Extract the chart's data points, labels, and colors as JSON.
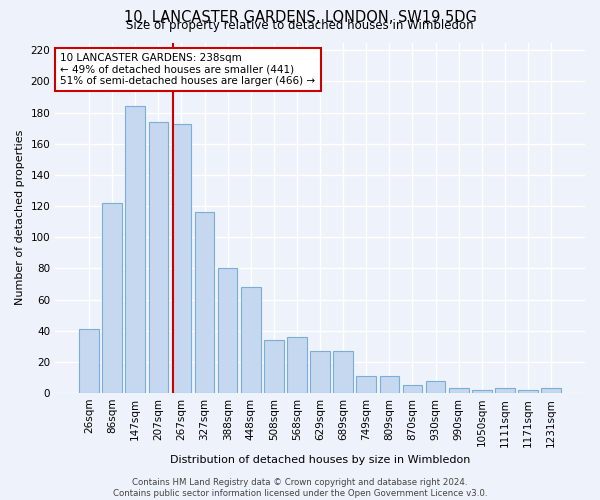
{
  "title": "10, LANCASTER GARDENS, LONDON, SW19 5DG",
  "subtitle": "Size of property relative to detached houses in Wimbledon",
  "xlabel": "Distribution of detached houses by size in Wimbledon",
  "ylabel": "Number of detached properties",
  "categories": [
    "26sqm",
    "86sqm",
    "147sqm",
    "207sqm",
    "267sqm",
    "327sqm",
    "388sqm",
    "448sqm",
    "508sqm",
    "568sqm",
    "629sqm",
    "689sqm",
    "749sqm",
    "809sqm",
    "870sqm",
    "930sqm",
    "990sqm",
    "1050sqm",
    "1111sqm",
    "1171sqm",
    "1231sqm"
  ],
  "values": [
    41,
    122,
    184,
    174,
    173,
    116,
    80,
    68,
    34,
    36,
    27,
    27,
    11,
    11,
    5,
    8,
    3,
    2,
    3,
    2,
    3
  ],
  "bar_color": "#c5d8f0",
  "bar_edge_color": "#7badd6",
  "red_line_x": 3.62,
  "annotation_text": "10 LANCASTER GARDENS: 238sqm\n← 49% of detached houses are smaller (441)\n51% of semi-detached houses are larger (466) →",
  "annotation_box_color": "#ffffff",
  "annotation_box_edge": "#cc0000",
  "background_color": "#eef2fb",
  "grid_color": "#ffffff",
  "footer": "Contains HM Land Registry data © Crown copyright and database right 2024.\nContains public sector information licensed under the Open Government Licence v3.0.",
  "ylim": [
    0,
    225
  ],
  "yticks": [
    0,
    20,
    40,
    60,
    80,
    100,
    120,
    140,
    160,
    180,
    200,
    220
  ]
}
